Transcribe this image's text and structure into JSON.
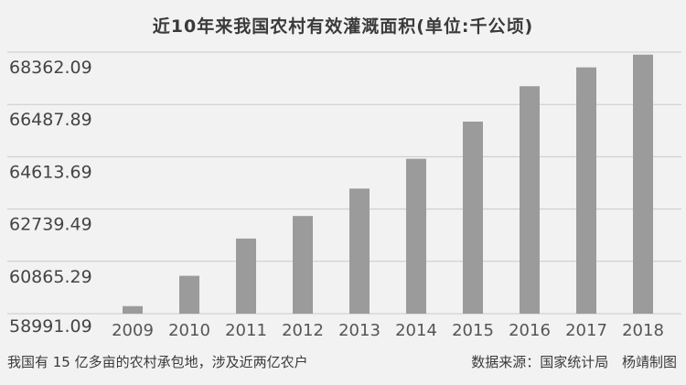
{
  "chart_data": {
    "type": "bar",
    "title": "近10年来我国农村有效灌溉面积(单位:千公顷)",
    "categories": [
      "2009",
      "2010",
      "2011",
      "2012",
      "2013",
      "2014",
      "2015",
      "2016",
      "2017",
      "2018"
    ],
    "values": [
      59261,
      60348,
      61682,
      62491,
      63473,
      64540,
      65873,
      67141,
      67816,
      68272
    ],
    "ylim": [
      58991.09,
      68362.09
    ],
    "yticks": [
      "58991.09",
      "60865.29",
      "62739.49",
      "64613.69",
      "66487.89",
      "68362.09"
    ],
    "bar_color": "#9b9b9b",
    "grid": true
  },
  "footer": {
    "note": "我国有 15 亿多亩的农村承包地，涉及近两亿农户",
    "source": "数据来源：国家统计局",
    "author": "杨靖制图"
  }
}
